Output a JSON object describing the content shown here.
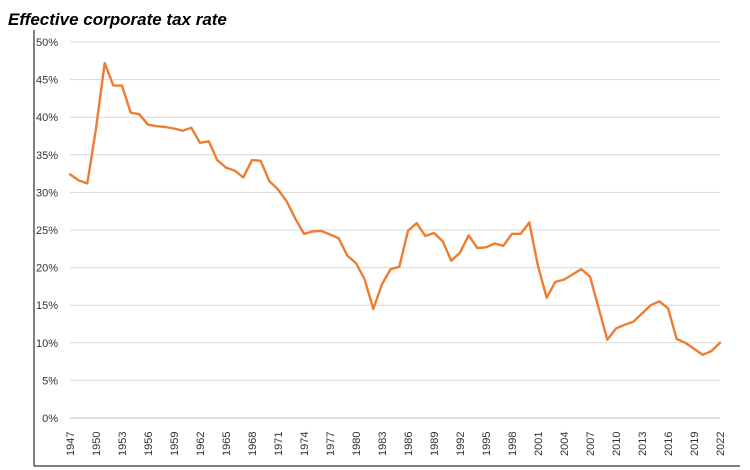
{
  "chart_data": {
    "type": "line",
    "title": "Effective corporate tax rate",
    "xlabel": "",
    "ylabel": "",
    "ylim": [
      0,
      50
    ],
    "y_ticks": [
      0,
      5,
      10,
      15,
      20,
      25,
      30,
      35,
      40,
      45,
      50
    ],
    "y_tick_labels": [
      "0%",
      "5%",
      "10%",
      "15%",
      "20%",
      "25%",
      "30%",
      "35%",
      "40%",
      "45%",
      "50%"
    ],
    "x_tick_labels": [
      "1947",
      "1950",
      "1953",
      "1956",
      "1959",
      "1962",
      "1965",
      "1968",
      "1971",
      "1974",
      "1977",
      "1980",
      "1983",
      "1986",
      "1989",
      "1992",
      "1995",
      "1998",
      "2001",
      "2004",
      "2007",
      "2010",
      "2013",
      "2016",
      "2019",
      "2022"
    ],
    "grid": true,
    "line_color": "#ED7D31",
    "series": [
      {
        "name": "Effective corporate tax rate",
        "x": [
          1947,
          1948,
          1949,
          1950,
          1951,
          1952,
          1953,
          1954,
          1955,
          1956,
          1957,
          1958,
          1959,
          1960,
          1961,
          1962,
          1963,
          1964,
          1965,
          1966,
          1967,
          1968,
          1969,
          1970,
          1971,
          1972,
          1973,
          1974,
          1975,
          1976,
          1977,
          1978,
          1979,
          1980,
          1981,
          1982,
          1983,
          1984,
          1985,
          1986,
          1987,
          1988,
          1989,
          1990,
          1991,
          1992,
          1993,
          1994,
          1995,
          1996,
          1997,
          1998,
          1999,
          2000,
          2001,
          2002,
          2003,
          2004,
          2005,
          2006,
          2007,
          2008,
          2009,
          2010,
          2011,
          2012,
          2013,
          2014,
          2015,
          2016,
          2017,
          2018,
          2019,
          2020,
          2021,
          2022
        ],
        "values": [
          32.4,
          31.6,
          31.2,
          38.5,
          47.2,
          44.2,
          44.2,
          40.6,
          40.4,
          39.0,
          38.8,
          38.7,
          38.5,
          38.2,
          38.6,
          36.6,
          36.8,
          34.3,
          33.3,
          32.9,
          32.0,
          34.3,
          34.2,
          31.5,
          30.4,
          28.8,
          26.5,
          24.5,
          24.8,
          24.9,
          24.4,
          23.9,
          21.6,
          20.6,
          18.4,
          14.5,
          17.8,
          19.8,
          20.1,
          24.9,
          25.9,
          24.2,
          24.6,
          23.5,
          20.9,
          22.0,
          24.3,
          22.6,
          22.7,
          23.2,
          22.9,
          24.5,
          24.5,
          26.0,
          20.2,
          16.0,
          18.1,
          18.4,
          19.1,
          19.8,
          18.8,
          14.6,
          10.4,
          11.9,
          12.4,
          12.8,
          13.9,
          15.0,
          15.5,
          14.6,
          10.5,
          10.0,
          9.2,
          8.4,
          8.9,
          10.0
        ]
      }
    ]
  }
}
